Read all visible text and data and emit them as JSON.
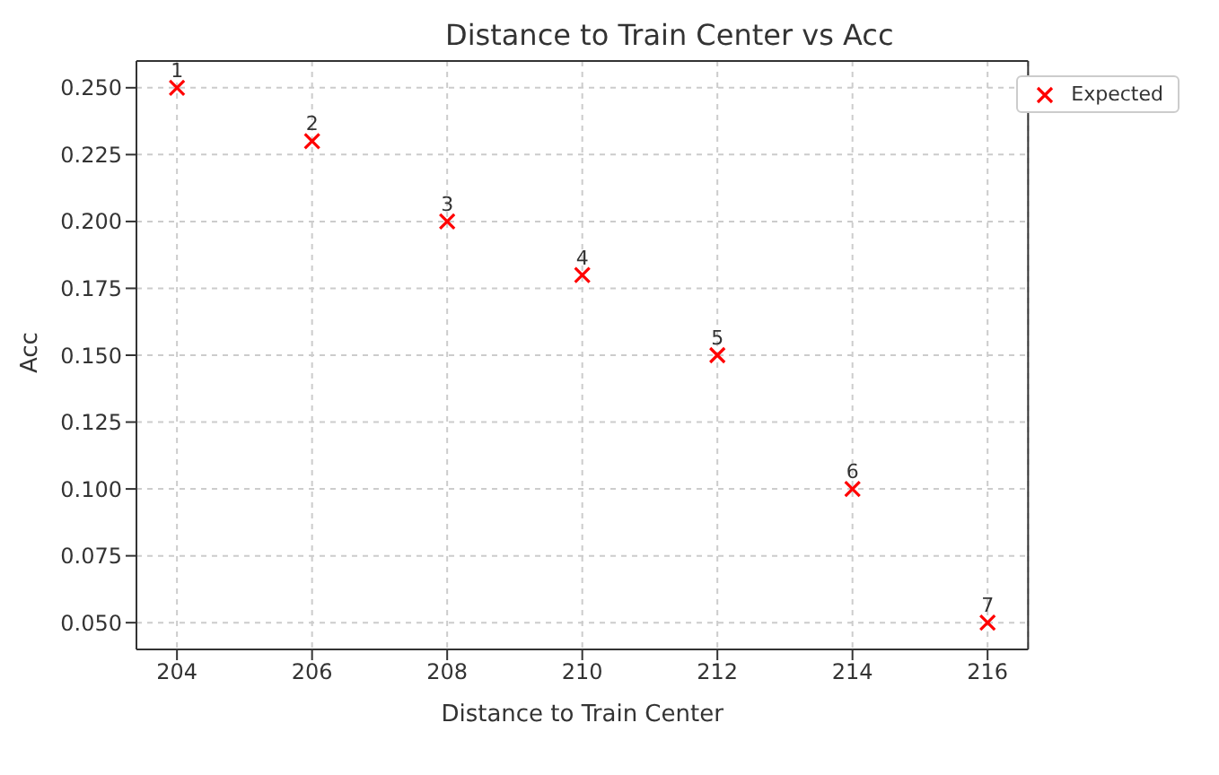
{
  "chart_data": {
    "type": "scatter",
    "title": "Distance to Train Center vs Acc",
    "xlabel": "Distance to Train Center",
    "ylabel": "Acc",
    "x": [
      204,
      206,
      208,
      210,
      212,
      214,
      216
    ],
    "series": [
      {
        "name": "Expected",
        "color": "#ff0000",
        "values": [
          0.25,
          0.23,
          0.2,
          0.18,
          0.15,
          0.1,
          0.05
        ]
      }
    ],
    "marker": "cross",
    "grid": true,
    "legend": "top right",
    "xlim": [
      203.4,
      216.6
    ],
    "xticks": [
      204,
      206,
      208,
      210,
      212,
      214,
      216
    ],
    "ylim": [
      0.04,
      0.26
    ],
    "yticks": [
      {
        "value": 0.05,
        "label": "0.050"
      },
      {
        "value": 0.075,
        "label": "0.075"
      },
      {
        "value": 0.1,
        "label": "0.100"
      },
      {
        "value": 0.125,
        "label": "0.125"
      },
      {
        "value": 0.15,
        "label": "0.150"
      },
      {
        "value": 0.175,
        "label": "0.175"
      },
      {
        "value": 0.2,
        "label": "0.200"
      },
      {
        "value": 0.225,
        "label": "0.225"
      },
      {
        "value": 0.25,
        "label": "0.250"
      }
    ],
    "annotations": [
      {
        "text": "1",
        "x": 204,
        "y": 0.25
      },
      {
        "text": "2",
        "x": 206,
        "y": 0.23
      },
      {
        "text": "3",
        "x": 208,
        "y": 0.2
      },
      {
        "text": "4",
        "x": 210,
        "y": 0.18
      },
      {
        "text": "5",
        "x": 212,
        "y": 0.15
      },
      {
        "text": "6",
        "x": 214,
        "y": 0.1
      },
      {
        "text": "7",
        "x": 216,
        "y": 0.05
      }
    ]
  }
}
